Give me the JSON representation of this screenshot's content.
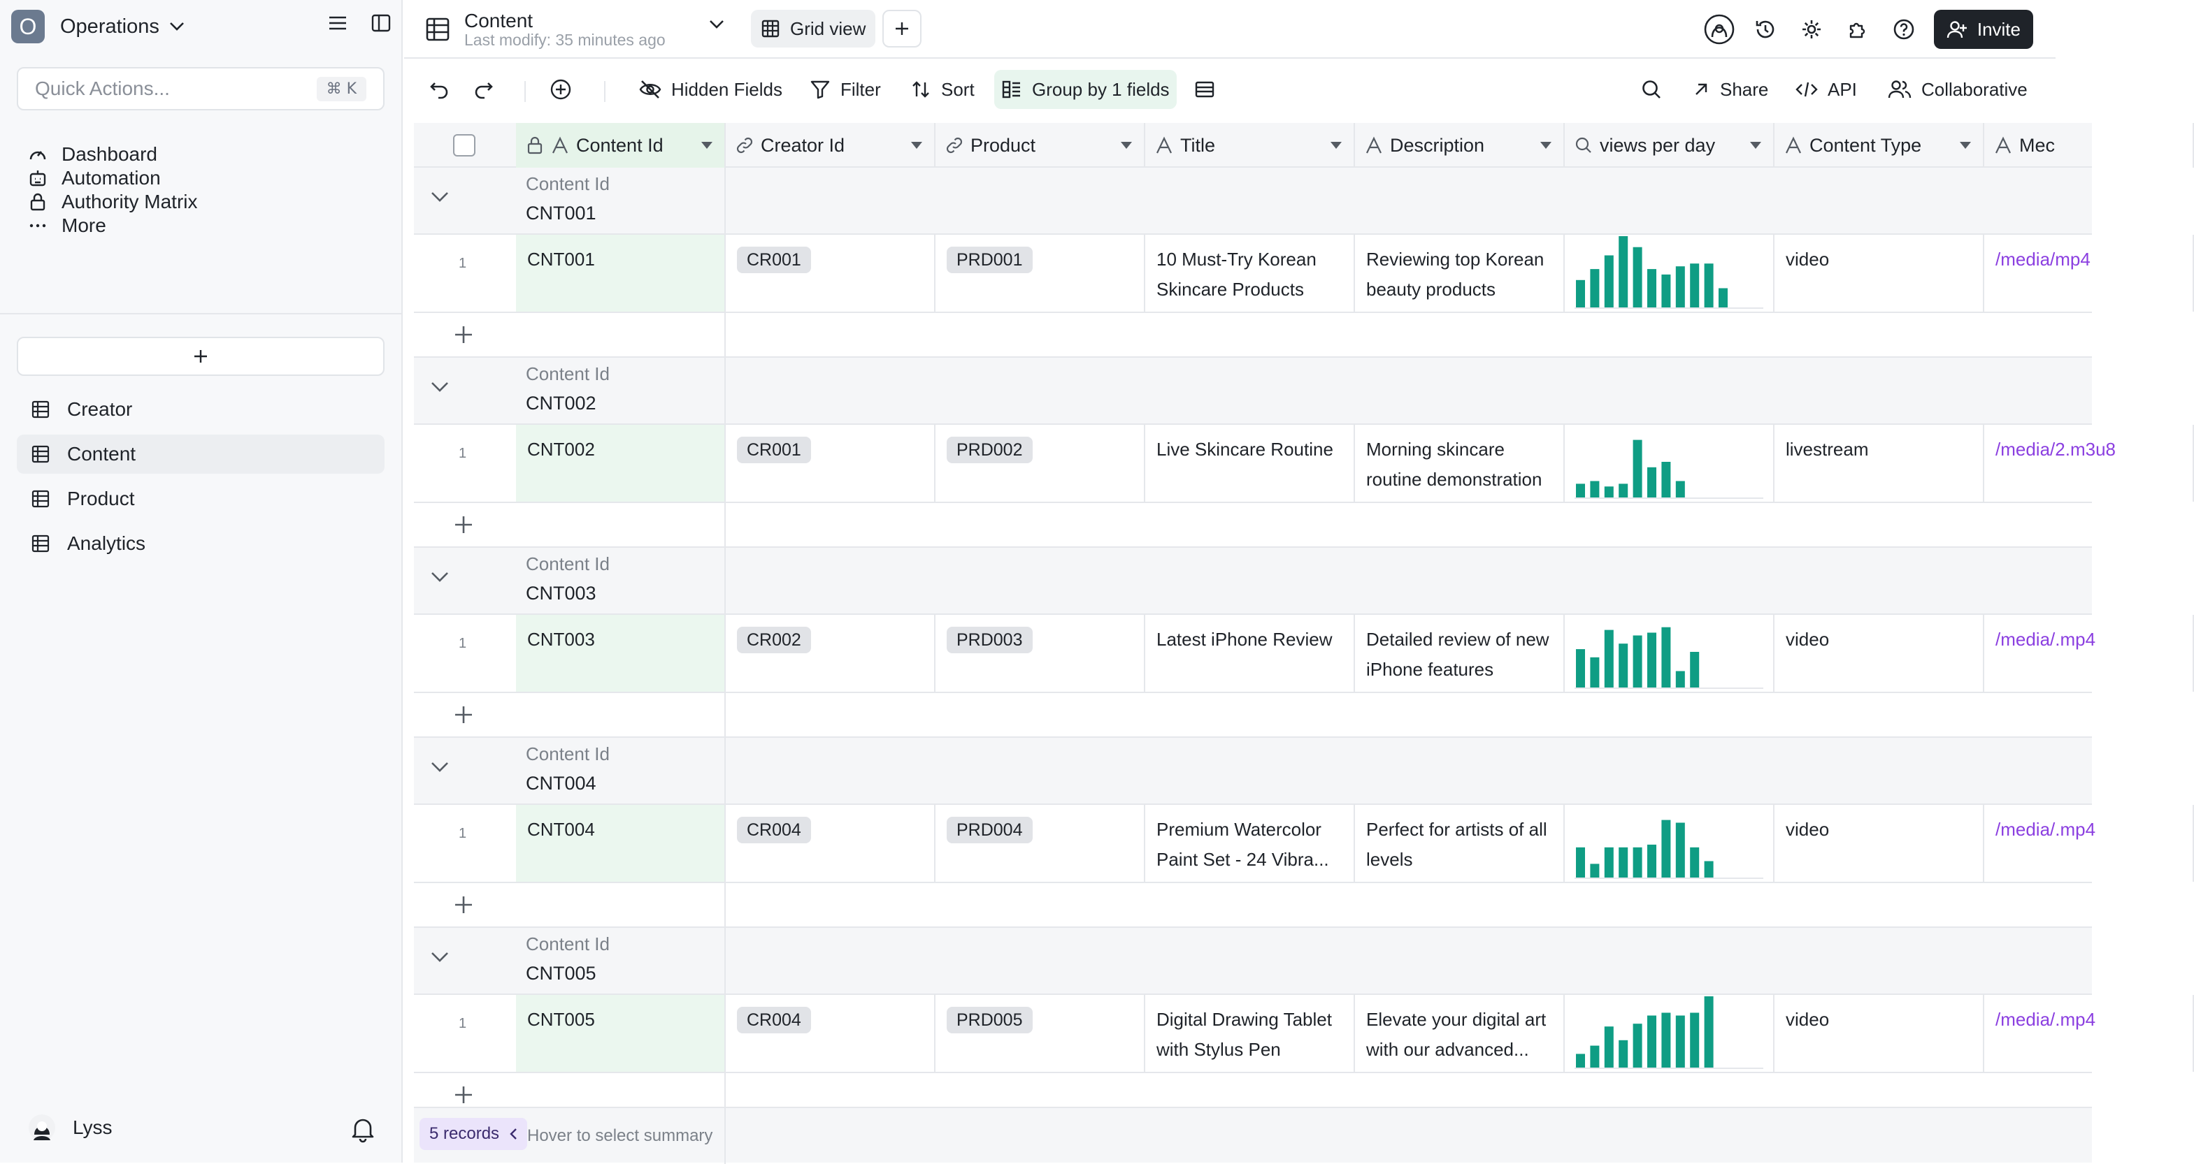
{
  "workspace": {
    "logo_letter": "O",
    "name": "Operations"
  },
  "quick_actions": {
    "placeholder": "Quick Actions...",
    "shortcut": "⌘ K"
  },
  "nav": [
    {
      "label": "Dashboard",
      "icon": "gauge-icon"
    },
    {
      "label": "Automation",
      "icon": "robot-icon"
    },
    {
      "label": "Authority Matrix",
      "icon": "lock-icon"
    },
    {
      "label": "More",
      "icon": "more-icon"
    }
  ],
  "tables": [
    {
      "label": "Creator",
      "active": false
    },
    {
      "label": "Content",
      "active": true
    },
    {
      "label": "Product",
      "active": false
    },
    {
      "label": "Analytics",
      "active": false
    }
  ],
  "user": {
    "name": "Lyss"
  },
  "topbar": {
    "title": "Content",
    "subtitle": "Last modify: 35 minutes ago",
    "view_label": "Grid view",
    "invite_label": "Invite"
  },
  "toolbar": {
    "hidden_fields": "Hidden Fields",
    "filter": "Filter",
    "sort": "Sort",
    "group_by": "Group by 1 fields",
    "share": "Share",
    "api": "API",
    "collaborative": "Collaborative"
  },
  "columns": [
    {
      "label": "Content Id",
      "icon": "text-icon",
      "locked": true
    },
    {
      "label": "Creator Id",
      "icon": "link-icon"
    },
    {
      "label": "Product",
      "icon": "link-icon"
    },
    {
      "label": "Title",
      "icon": "text-icon"
    },
    {
      "label": "Description",
      "icon": "text-icon"
    },
    {
      "label": "views per day",
      "icon": "search-icon"
    },
    {
      "label": "Content Type",
      "icon": "text-icon"
    },
    {
      "label": "Mec",
      "icon": "text-icon"
    }
  ],
  "group_field_label": "Content Id",
  "groups": [
    {
      "value": "CNT001",
      "row": {
        "num": "1",
        "content_id": "CNT001",
        "creator_id": "CR001",
        "product": "PRD001",
        "title": "10 Must-Try Korean Skincare Products",
        "description": "Reviewing top Korean beauty products",
        "views": [
          10,
          14,
          19,
          26,
          22,
          14,
          12,
          15,
          16,
          16,
          7
        ],
        "content_type": "video",
        "media": "/media/mp4"
      }
    },
    {
      "value": "CNT002",
      "row": {
        "num": "1",
        "content_id": "CNT002",
        "creator_id": "CR001",
        "product": "PRD002",
        "title": "Live Skincare Routine",
        "description": "Morning skincare routine demonstration",
        "views": [
          5,
          6,
          4,
          5,
          21,
          11,
          13,
          6
        ],
        "content_type": "livestream",
        "media": "/media/2.m3u8"
      }
    },
    {
      "value": "CNT003",
      "row": {
        "num": "1",
        "content_id": "CNT003",
        "creator_id": "CR002",
        "product": "PRD003",
        "title": "Latest iPhone Review",
        "description": "Detailed review of new iPhone features",
        "views": [
          14,
          11,
          21,
          16,
          19,
          20,
          22,
          6,
          13
        ],
        "content_type": "video",
        "media": "/media/.mp4"
      }
    },
    {
      "value": "CNT004",
      "row": {
        "num": "1",
        "content_id": "CNT004",
        "creator_id": "CR004",
        "product": "PRD004",
        "title": "Premium Watercolor Paint Set - 24 Vibra...",
        "description": "Perfect for artists of all levels",
        "views": [
          11,
          5,
          11,
          11,
          11,
          12,
          21,
          20,
          11,
          6
        ],
        "content_type": "video",
        "media": "/media/.mp4"
      }
    },
    {
      "value": "CNT005",
      "row": {
        "num": "1",
        "content_id": "CNT005",
        "creator_id": "CR004",
        "product": "PRD005",
        "title": "Digital Drawing Tablet with Stylus Pen",
        "description": "Elevate your digital art with our advanced...",
        "views": [
          5,
          8,
          15,
          10,
          16,
          19,
          20,
          19,
          20,
          26
        ],
        "content_type": "video",
        "media": "/media/.mp4"
      }
    }
  ],
  "footer": {
    "records": "5 records",
    "hint": "Hover to select summary"
  },
  "colors": {
    "accent_green": "#0f9d84",
    "primary_key_bg": "#ebf7ef",
    "link_purple": "#8b3fe0",
    "record_pill": "#ebe4fb"
  }
}
